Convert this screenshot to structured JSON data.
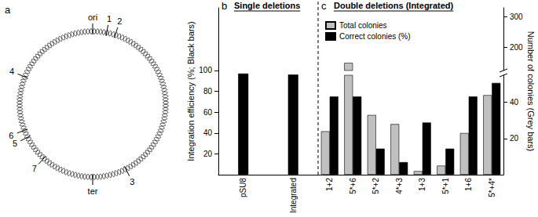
{
  "panel_a": {
    "label": "a",
    "origin": "ori",
    "terminus": "ter",
    "loci": [
      "1",
      "2",
      "3",
      "4",
      "5",
      "6",
      "7"
    ]
  },
  "chart_data": [
    {
      "type": "bar",
      "label": "b",
      "title": "Single deletions",
      "categories": [
        "pSU8",
        "Integrated"
      ],
      "values": [
        97,
        96
      ],
      "color": "#000000",
      "y_label": "Integration efficiency (%; Black bars)",
      "ylim": [
        0,
        160
      ],
      "yticks": [
        20,
        40,
        60,
        80,
        100
      ]
    },
    {
      "type": "bar",
      "label": "c",
      "title": "Double deletions (Integrated)",
      "categories": [
        "1+2",
        "5*+6",
        "5*+2",
        "4*+3",
        "1+3",
        "5*+1",
        "1+6",
        "5*+4*"
      ],
      "series": [
        {
          "name": "Total colonies",
          "color": "#c0c0c0",
          "axis": "y2",
          "values": [
            24,
            150,
            33,
            28,
            2,
            5,
            23,
            44
          ]
        },
        {
          "name": "Correct colonies (%)",
          "color": "#000000",
          "values": [
            75,
            75,
            25,
            12,
            50,
            25,
            75,
            88
          ]
        }
      ],
      "ylim": [
        0,
        160
      ],
      "y2lim": [
        0,
        330
      ],
      "y2ticks": [
        20,
        40,
        200,
        300
      ],
      "y2_break": [
        55,
        125
      ],
      "y2_label": "Number of colonies (Grey bars)",
      "legend": "upper left"
    }
  ]
}
